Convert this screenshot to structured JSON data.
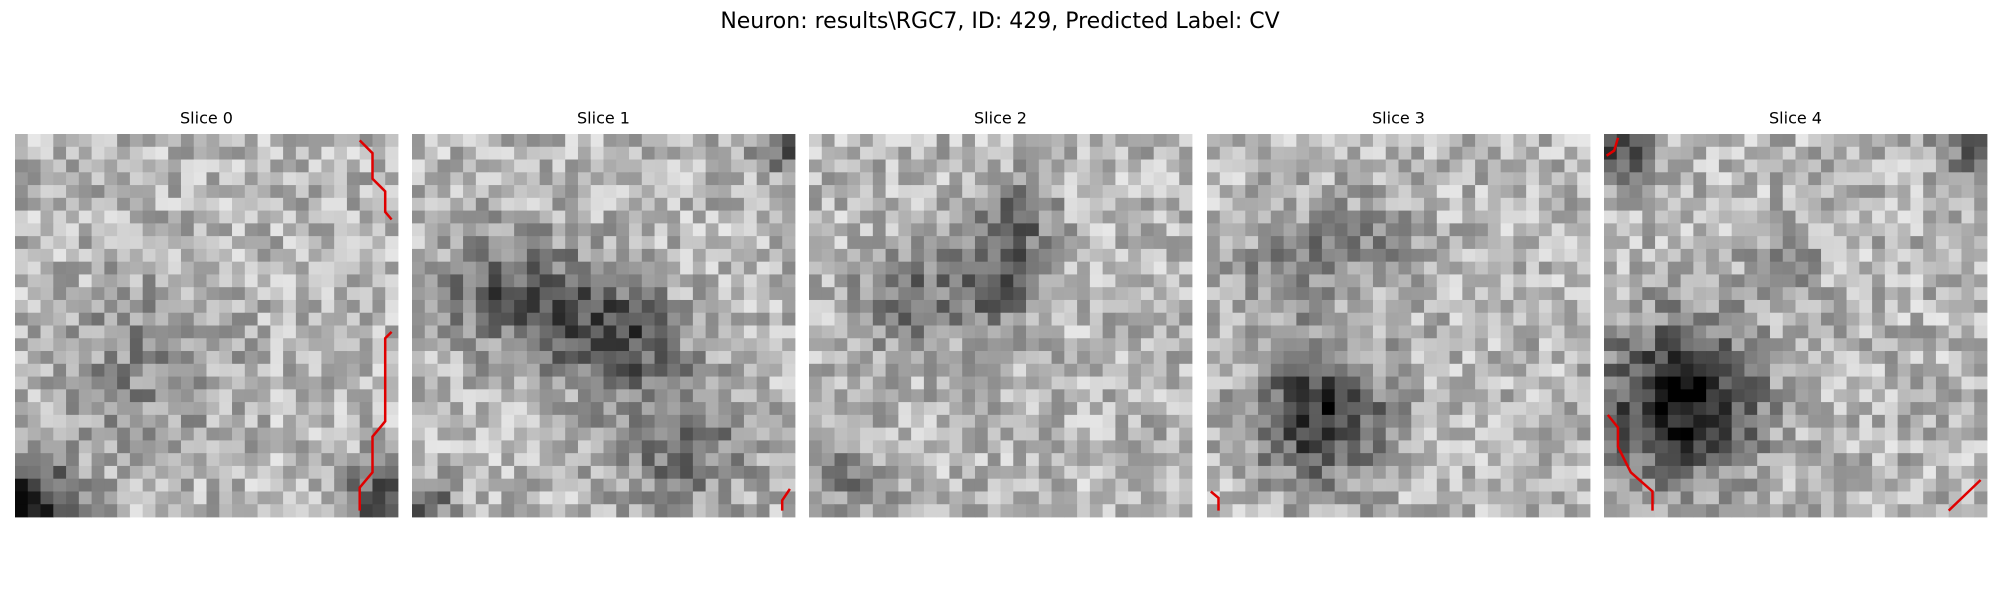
{
  "title": "Neuron: results\\RGC7, ID: 429, Predicted Label: CV",
  "panels": [
    {
      "label": "Slice 0"
    },
    {
      "label": "Slice 1"
    },
    {
      "label": "Slice 2"
    },
    {
      "label": "Slice 3"
    },
    {
      "label": "Slice 4"
    }
  ]
}
